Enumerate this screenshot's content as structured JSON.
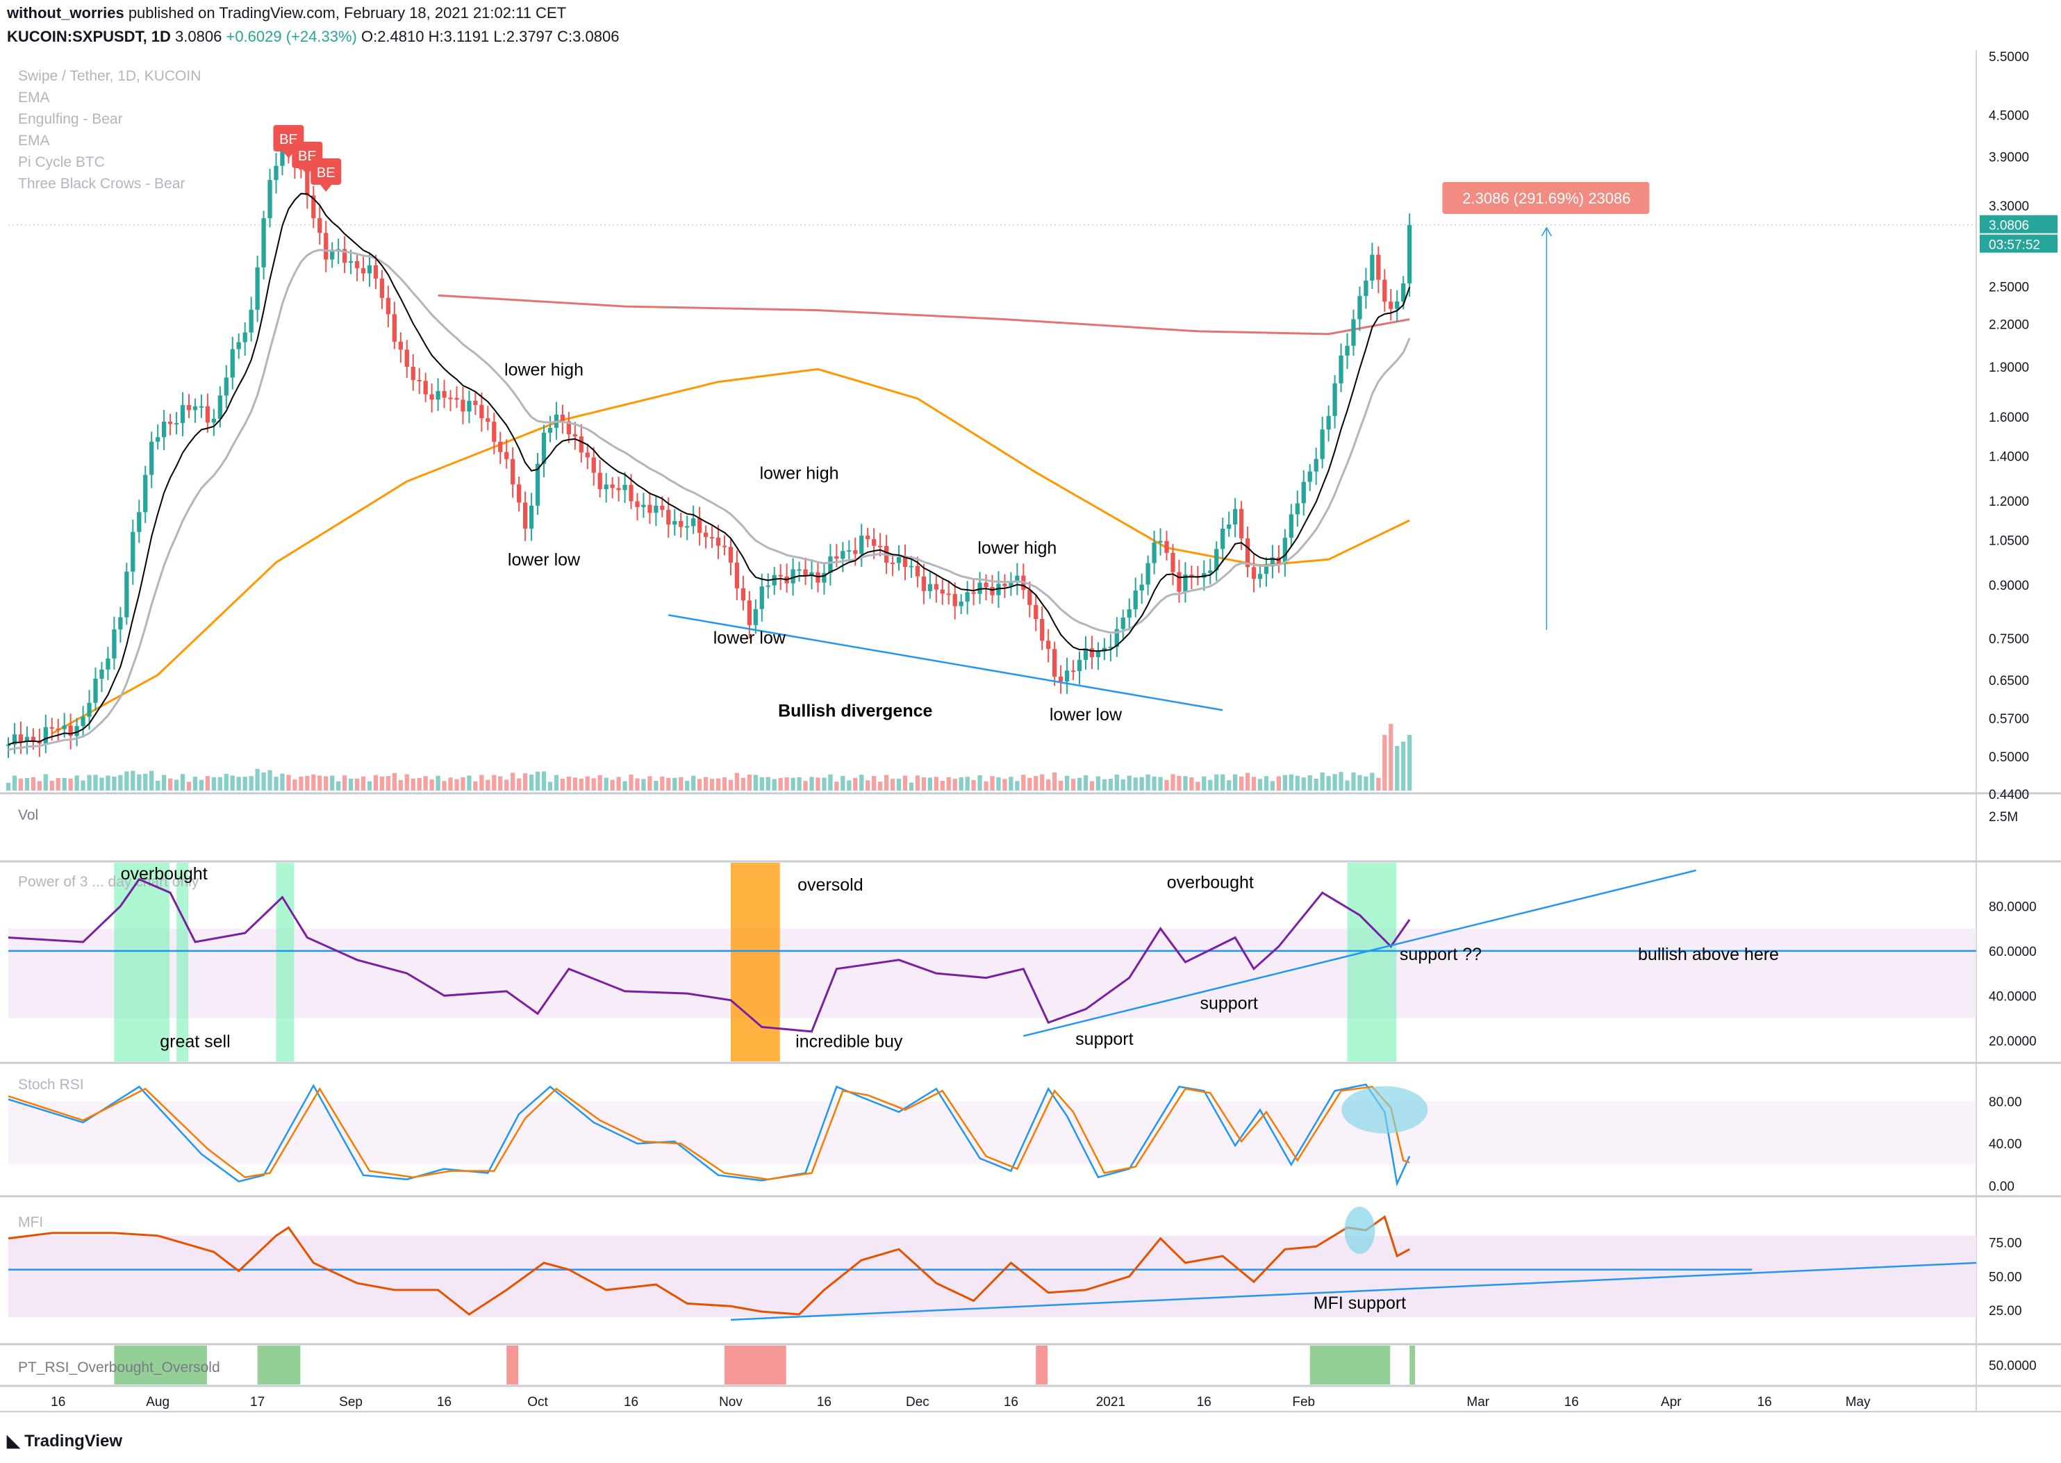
{
  "header": {
    "publisher": "without_worries",
    "published_text": "published on TradingView.com, February 18, 2021 21:02:11 CET",
    "symbol": "KUCOIN:SXPUSDT, 1D",
    "last": "3.0806",
    "change": "+0.6029 (+24.33%)",
    "open": "O:2.4810",
    "high": "H:3.1191",
    "low": "L:2.3797",
    "close": "C:3.0806"
  },
  "legend": [
    "Swipe / Tether, 1D, KUCOIN",
    "EMA",
    "Engulfing - Bear",
    "EMA",
    "Pi Cycle BTC",
    "Three Black Crows - Bear"
  ],
  "colors": {
    "up": "#26a69a",
    "down": "#ef5350",
    "ema_short": "#000000",
    "ema_mid": "#b2b5be",
    "ema_200": "#e57373",
    "ema_100": "#ff9800",
    "rsi": "#7b1fa2",
    "stoch_k": "#2196f3",
    "stoch_d": "#f57c00",
    "mfi": "#e65100",
    "trend": "#2196f3",
    "band": "#f3e5f5"
  },
  "price_axis": [
    "5.5000",
    "4.5000",
    "3.9000",
    "3.3000",
    "2.5000",
    "2.2000",
    "1.9000",
    "1.6000",
    "1.4000",
    "1.2000",
    "1.0500",
    "0.9000",
    "0.7500",
    "0.6500",
    "0.5700",
    "0.5000",
    "0.4400"
  ],
  "last_price_label": "3.0806",
  "countdown_label": "03:57:52",
  "measure_label": "2.3086 (291.69%) 23086",
  "price_annotations": [
    "lower high",
    "lower low",
    "lower high",
    "lower low",
    "lower high",
    "lower low",
    "Bullish divergence"
  ],
  "vol_label": "Vol",
  "vol_axis": "2.5M",
  "rsi_label": "Power of 3 ... day chart only",
  "rsi_axis": [
    "80.0000",
    "60.0000",
    "40.0000",
    "20.0000"
  ],
  "rsi_annotations": [
    "overbought",
    "great sell",
    "oversold",
    "incredible buy",
    "overbought",
    "support",
    "support",
    "support ??",
    "bullish above here"
  ],
  "stoch_label": "Stoch RSI",
  "stoch_axis": [
    "80.00",
    "40.00",
    "0.00"
  ],
  "mfi_label": "MFI",
  "mfi_axis": [
    "75.00",
    "50.00",
    "25.00"
  ],
  "mfi_annotation": "MFI support",
  "pt_label": "PT_RSI_Overbought_Oversold",
  "pt_axis": "50.0000",
  "time_axis": [
    "16",
    "Aug",
    "17",
    "Sep",
    "16",
    "Oct",
    "16",
    "Nov",
    "16",
    "Dec",
    "16",
    "2021",
    "16",
    "Feb",
    "Mar",
    "16",
    "Apr",
    "16",
    "May"
  ],
  "brand": "TradingView",
  "chart_data": {
    "type": "candlestick",
    "title": "Swipe / Tether, 1D, KUCOIN",
    "ylim": [
      0.44,
      5.5
    ],
    "yscale": "log",
    "x_range": [
      "2020-07-08",
      "2021-05-20"
    ],
    "anchors": [
      [
        "2020-07-08",
        0.52
      ],
      [
        "2020-07-20",
        0.56
      ],
      [
        "2020-07-26",
        0.8
      ],
      [
        "2020-07-31",
        1.45
      ],
      [
        "2020-08-05",
        1.65
      ],
      [
        "2020-08-10",
        1.6
      ],
      [
        "2020-08-16",
        2.3
      ],
      [
        "2020-08-19",
        3.5
      ],
      [
        "2020-08-21",
        4.2
      ],
      [
        "2020-08-24",
        3.6
      ],
      [
        "2020-08-28",
        2.8
      ],
      [
        "2020-09-02",
        2.7
      ],
      [
        "2020-09-05",
        2.55
      ],
      [
        "2020-09-10",
        1.85
      ],
      [
        "2020-09-15",
        1.7
      ],
      [
        "2020-09-20",
        1.68
      ],
      [
        "2020-09-25",
        1.45
      ],
      [
        "2020-09-29",
        1.08
      ],
      [
        "2020-10-02",
        1.5
      ],
      [
        "2020-10-05",
        1.6
      ],
      [
        "2020-10-10",
        1.3
      ],
      [
        "2020-10-20",
        1.15
      ],
      [
        "2020-10-30",
        1.05
      ],
      [
        "2020-11-04",
        0.8
      ],
      [
        "2020-11-08",
        0.93
      ],
      [
        "2020-11-15",
        0.93
      ],
      [
        "2020-11-22",
        1.05
      ],
      [
        "2020-11-28",
        0.97
      ],
      [
        "2020-12-06",
        0.85
      ],
      [
        "2020-12-14",
        0.9
      ],
      [
        "2020-12-18",
        0.9
      ],
      [
        "2020-12-23",
        0.65
      ],
      [
        "2020-12-28",
        0.7
      ],
      [
        "2021-01-02",
        0.75
      ],
      [
        "2021-01-05",
        0.88
      ],
      [
        "2021-01-09",
        1.05
      ],
      [
        "2021-01-12",
        0.9
      ],
      [
        "2021-01-16",
        0.93
      ],
      [
        "2021-01-21",
        1.15
      ],
      [
        "2021-01-24",
        0.9
      ],
      [
        "2021-01-28",
        1.0
      ],
      [
        "2021-02-01",
        1.25
      ],
      [
        "2021-02-05",
        1.6
      ],
      [
        "2021-02-08",
        2.1
      ],
      [
        "2021-02-12",
        2.7
      ],
      [
        "2021-02-15",
        2.3
      ],
      [
        "2021-02-17",
        2.48
      ],
      [
        "2021-02-18",
        3.08
      ]
    ],
    "ema_200": [
      [
        "2020-09-15",
        2.42
      ],
      [
        "2020-10-15",
        2.33
      ],
      [
        "2020-11-15",
        2.3
      ],
      [
        "2020-12-15",
        2.23
      ],
      [
        "2021-01-15",
        2.14
      ],
      [
        "2021-02-05",
        2.12
      ],
      [
        "2021-02-18",
        2.23
      ]
    ],
    "ema_100": [
      [
        "2020-07-15",
        0.54
      ],
      [
        "2020-08-01",
        0.66
      ],
      [
        "2020-08-20",
        0.97
      ],
      [
        "2020-09-10",
        1.28
      ],
      [
        "2020-10-05",
        1.58
      ],
      [
        "2020-10-30",
        1.8
      ],
      [
        "2020-11-15",
        1.88
      ],
      [
        "2020-12-01",
        1.7
      ],
      [
        "2020-12-20",
        1.32
      ],
      [
        "2021-01-10",
        1.02
      ],
      [
        "2021-01-25",
        0.96
      ],
      [
        "2021-02-05",
        0.98
      ],
      [
        "2021-02-18",
        1.12
      ]
    ],
    "rsi": [
      [
        "2020-07-08",
        66
      ],
      [
        "2020-07-20",
        64
      ],
      [
        "2020-07-26",
        80
      ],
      [
        "2020-07-29",
        92
      ],
      [
        "2020-08-03",
        86
      ],
      [
        "2020-08-07",
        64
      ],
      [
        "2020-08-15",
        68
      ],
      [
        "2020-08-21",
        84
      ],
      [
        "2020-08-25",
        66
      ],
      [
        "2020-09-02",
        56
      ],
      [
        "2020-09-10",
        50
      ],
      [
        "2020-09-16",
        40
      ],
      [
        "2020-09-26",
        42
      ],
      [
        "2020-10-01",
        32
      ],
      [
        "2020-10-06",
        52
      ],
      [
        "2020-10-15",
        42
      ],
      [
        "2020-10-25",
        41
      ],
      [
        "2020-11-01",
        38
      ],
      [
        "2020-11-06",
        26
      ],
      [
        "2020-11-14",
        24
      ],
      [
        "2020-11-18",
        52
      ],
      [
        "2020-11-28",
        56
      ],
      [
        "2020-12-04",
        50
      ],
      [
        "2020-12-12",
        48
      ],
      [
        "2020-12-18",
        52
      ],
      [
        "2020-12-22",
        28
      ],
      [
        "2020-12-28",
        34
      ],
      [
        "2021-01-04",
        48
      ],
      [
        "2021-01-09",
        70
      ],
      [
        "2021-01-13",
        55
      ],
      [
        "2021-01-21",
        66
      ],
      [
        "2021-01-24",
        52
      ],
      [
        "2021-01-28",
        62
      ],
      [
        "2021-02-04",
        86
      ],
      [
        "2021-02-10",
        76
      ],
      [
        "2021-02-15",
        62
      ],
      [
        "2021-02-18",
        74
      ]
    ],
    "stoch_k": [
      [
        "2020-07-08",
        82
      ],
      [
        "2020-07-20",
        60
      ],
      [
        "2020-07-29",
        94
      ],
      [
        "2020-08-08",
        30
      ],
      [
        "2020-08-14",
        4
      ],
      [
        "2020-08-18",
        10
      ],
      [
        "2020-08-26",
        95
      ],
      [
        "2020-09-03",
        10
      ],
      [
        "2020-09-10",
        6
      ],
      [
        "2020-09-16",
        16
      ],
      [
        "2020-09-23",
        12
      ],
      [
        "2020-09-28",
        68
      ],
      [
        "2020-10-03",
        94
      ],
      [
        "2020-10-10",
        60
      ],
      [
        "2020-10-17",
        40
      ],
      [
        "2020-10-23",
        42
      ],
      [
        "2020-10-30",
        10
      ],
      [
        "2020-11-06",
        5
      ],
      [
        "2020-11-13",
        12
      ],
      [
        "2020-11-18",
        94
      ],
      [
        "2020-11-22",
        84
      ],
      [
        "2020-11-28",
        70
      ],
      [
        "2020-12-04",
        92
      ],
      [
        "2020-12-11",
        26
      ],
      [
        "2020-12-16",
        14
      ],
      [
        "2020-12-22",
        92
      ],
      [
        "2020-12-25",
        66
      ],
      [
        "2020-12-30",
        8
      ],
      [
        "2021-01-04",
        16
      ],
      [
        "2021-01-12",
        94
      ],
      [
        "2021-01-16",
        90
      ],
      [
        "2021-01-21",
        38
      ],
      [
        "2021-01-25",
        72
      ],
      [
        "2021-01-30",
        20
      ],
      [
        "2021-02-06",
        90
      ],
      [
        "2021-02-11",
        96
      ],
      [
        "2021-02-14",
        70
      ],
      [
        "2021-02-16",
        2
      ],
      [
        "2021-02-18",
        28
      ]
    ],
    "stoch_d": [
      [
        "2020-07-08",
        85
      ],
      [
        "2020-07-20",
        62
      ],
      [
        "2020-07-30",
        92
      ],
      [
        "2020-08-09",
        35
      ],
      [
        "2020-08-15",
        8
      ],
      [
        "2020-08-19",
        12
      ],
      [
        "2020-08-27",
        92
      ],
      [
        "2020-09-04",
        14
      ],
      [
        "2020-09-11",
        8
      ],
      [
        "2020-09-17",
        14
      ],
      [
        "2020-09-24",
        14
      ],
      [
        "2020-09-29",
        64
      ],
      [
        "2020-10-04",
        92
      ],
      [
        "2020-10-11",
        62
      ],
      [
        "2020-10-18",
        42
      ],
      [
        "2020-10-24",
        40
      ],
      [
        "2020-10-31",
        12
      ],
      [
        "2020-11-07",
        6
      ],
      [
        "2020-11-14",
        12
      ],
      [
        "2020-11-19",
        90
      ],
      [
        "2020-11-23",
        86
      ],
      [
        "2020-11-29",
        72
      ],
      [
        "2020-12-05",
        90
      ],
      [
        "2020-12-12",
        28
      ],
      [
        "2020-12-17",
        16
      ],
      [
        "2020-12-23",
        90
      ],
      [
        "2020-12-26",
        70
      ],
      [
        "2020-12-31",
        12
      ],
      [
        "2021-01-05",
        18
      ],
      [
        "2021-01-13",
        92
      ],
      [
        "2021-01-17",
        88
      ],
      [
        "2021-01-22",
        42
      ],
      [
        "2021-01-26",
        70
      ],
      [
        "2021-01-31",
        24
      ],
      [
        "2021-02-07",
        90
      ],
      [
        "2021-02-12",
        94
      ],
      [
        "2021-02-15",
        74
      ],
      [
        "2021-02-17",
        24
      ],
      [
        "2021-02-18",
        22
      ]
    ],
    "mfi": [
      [
        "2020-07-08",
        78
      ],
      [
        "2020-07-15",
        82
      ],
      [
        "2020-07-25",
        82
      ],
      [
        "2020-08-01",
        80
      ],
      [
        "2020-08-10",
        68
      ],
      [
        "2020-08-14",
        54
      ],
      [
        "2020-08-20",
        80
      ],
      [
        "2020-08-22",
        86
      ],
      [
        "2020-08-26",
        60
      ],
      [
        "2020-09-02",
        45
      ],
      [
        "2020-09-08",
        40
      ],
      [
        "2020-09-15",
        40
      ],
      [
        "2020-09-20",
        22
      ],
      [
        "2020-09-26",
        40
      ],
      [
        "2020-10-02",
        60
      ],
      [
        "2020-10-06",
        55
      ],
      [
        "2020-10-12",
        40
      ],
      [
        "2020-10-20",
        44
      ],
      [
        "2020-10-25",
        30
      ],
      [
        "2020-11-01",
        28
      ],
      [
        "2020-11-06",
        24
      ],
      [
        "2020-11-12",
        22
      ],
      [
        "2020-11-16",
        40
      ],
      [
        "2020-11-22",
        62
      ],
      [
        "2020-11-28",
        70
      ],
      [
        "2020-12-04",
        45
      ],
      [
        "2020-12-10",
        32
      ],
      [
        "2020-12-16",
        60
      ],
      [
        "2020-12-22",
        38
      ],
      [
        "2020-12-28",
        40
      ],
      [
        "2021-01-04",
        50
      ],
      [
        "2021-01-09",
        78
      ],
      [
        "2021-01-13",
        60
      ],
      [
        "2021-01-19",
        65
      ],
      [
        "2021-01-24",
        46
      ],
      [
        "2021-01-29",
        70
      ],
      [
        "2021-02-03",
        72
      ],
      [
        "2021-02-08",
        86
      ],
      [
        "2021-02-11",
        84
      ],
      [
        "2021-02-14",
        94
      ],
      [
        "2021-02-16",
        65
      ],
      [
        "2021-02-18",
        70
      ]
    ],
    "volume_spikes": [
      [
        "2021-02-14",
        2.5
      ],
      [
        "2021-02-15",
        3.0
      ],
      [
        "2021-02-16",
        2.0
      ],
      [
        "2021-02-17",
        2.2
      ],
      [
        "2021-02-18",
        2.5
      ]
    ],
    "pt_rsi": [
      {
        "from": "2020-07-25",
        "to": "2020-08-08",
        "state": "overbought"
      },
      {
        "from": "2020-08-17",
        "to": "2020-08-23",
        "state": "overbought"
      },
      {
        "from": "2020-09-26",
        "to": "2020-09-27",
        "state": "oversold"
      },
      {
        "from": "2020-10-31",
        "to": "2020-11-09",
        "state": "oversold"
      },
      {
        "from": "2020-12-20",
        "to": "2020-12-21",
        "state": "oversold"
      },
      {
        "from": "2021-02-02",
        "to": "2021-02-14",
        "state": "overbought"
      },
      {
        "from": "2021-02-18",
        "to": "2021-02-18",
        "state": "overbought"
      }
    ],
    "rsi_highlights": [
      {
        "from": "2020-07-25",
        "to": "2020-08-02",
        "type": "overbought"
      },
      {
        "from": "2020-08-04",
        "to": "2020-08-05",
        "type": "overbought"
      },
      {
        "from": "2020-08-20",
        "to": "2020-08-22",
        "type": "overbought"
      },
      {
        "from": "2020-11-01",
        "to": "2020-11-08",
        "type": "oversold"
      },
      {
        "from": "2021-02-08",
        "to": "2021-02-15",
        "type": "overbought"
      }
    ],
    "candle_patterns": [
      {
        "date": "2020-08-22",
        "label": "BE"
      },
      {
        "date": "2020-08-25",
        "label": "BE"
      },
      {
        "date": "2020-08-28",
        "label": "BE"
      }
    ]
  }
}
